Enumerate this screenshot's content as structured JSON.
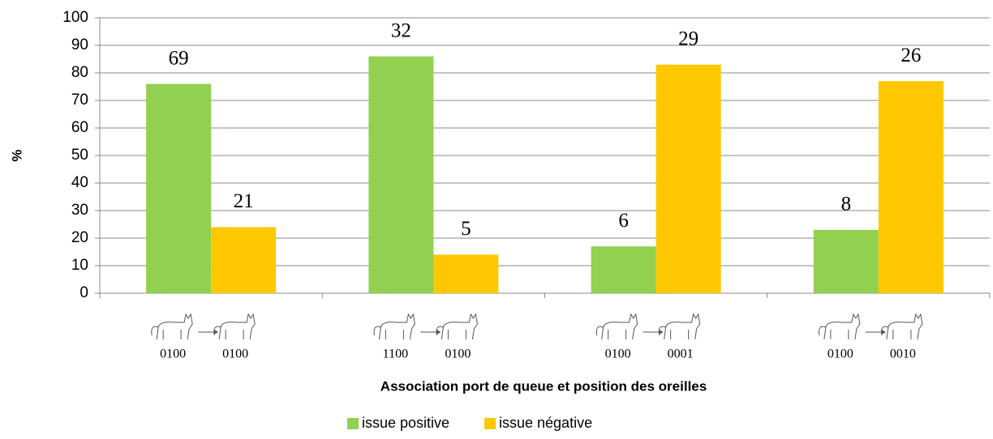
{
  "chart_data": {
    "type": "bar",
    "y_label": "%",
    "x_label": "Association port de queue et position des oreilles",
    "categories": [
      {
        "from": "0100",
        "to": "0100"
      },
      {
        "from": "1100",
        "to": "0100"
      },
      {
        "from": "0100",
        "to": "0001"
      },
      {
        "from": "0100",
        "to": "0010"
      }
    ],
    "series": [
      {
        "name": "issue positive",
        "color": "#92d050",
        "values": [
          76,
          86,
          17,
          23
        ],
        "counts": [
          69,
          32,
          6,
          8
        ]
      },
      {
        "name": "issue négative",
        "color": "#ffc800",
        "values": [
          24,
          14,
          83,
          77
        ],
        "counts": [
          21,
          5,
          29,
          26
        ]
      }
    ],
    "ylim": [
      0,
      100
    ],
    "yticks": [
      0,
      10,
      20,
      30,
      40,
      50,
      60,
      70,
      80,
      90,
      100
    ],
    "grid": true,
    "legend": "bottom"
  }
}
